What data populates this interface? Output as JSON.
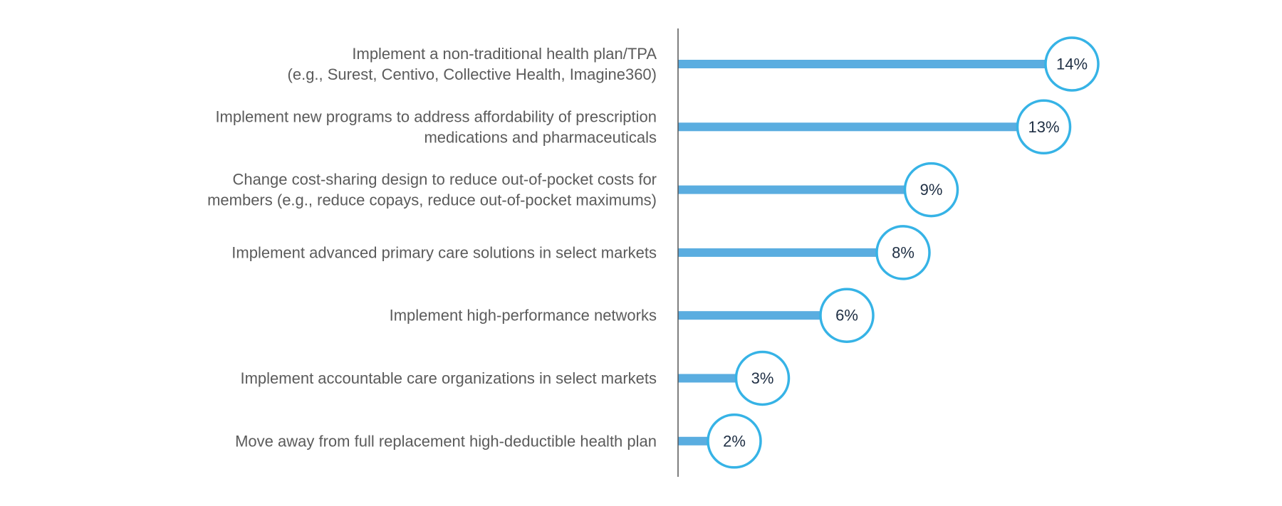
{
  "chart_data": {
    "type": "bar",
    "orientation": "horizontal",
    "style": "lollipop",
    "categories": [
      [
        "Implement a non-traditional health plan/TPA",
        "(e.g., Surest, Centivo, Collective Health, Imagine360)"
      ],
      [
        "Implement new programs to address affordability of prescription",
        "medications and pharmaceuticals"
      ],
      [
        "Change cost-sharing design to reduce out-of-pocket costs for",
        "members (e.g., reduce copays, reduce out-of-pocket maximums)"
      ],
      [
        "Implement advanced primary care solutions in select markets"
      ],
      [
        "Implement high-performance networks"
      ],
      [
        "Implement accountable care organizations in select markets"
      ],
      [
        "Move away from full replacement high-deductible health plan"
      ]
    ],
    "values": [
      14,
      13,
      9,
      8,
      6,
      3,
      2
    ],
    "value_labels": [
      "14%",
      "13%",
      "9%",
      "8%",
      "6%",
      "3%",
      "2%"
    ],
    "unit": "%",
    "xlim": [
      0,
      14
    ],
    "grid": false,
    "legend": "none",
    "colors": {
      "bar": "#5aade0",
      "circle_stroke": "#36b3e6",
      "axis": "#555555",
      "label": "#5b5b5b",
      "value_text": "#1f2f44"
    }
  }
}
